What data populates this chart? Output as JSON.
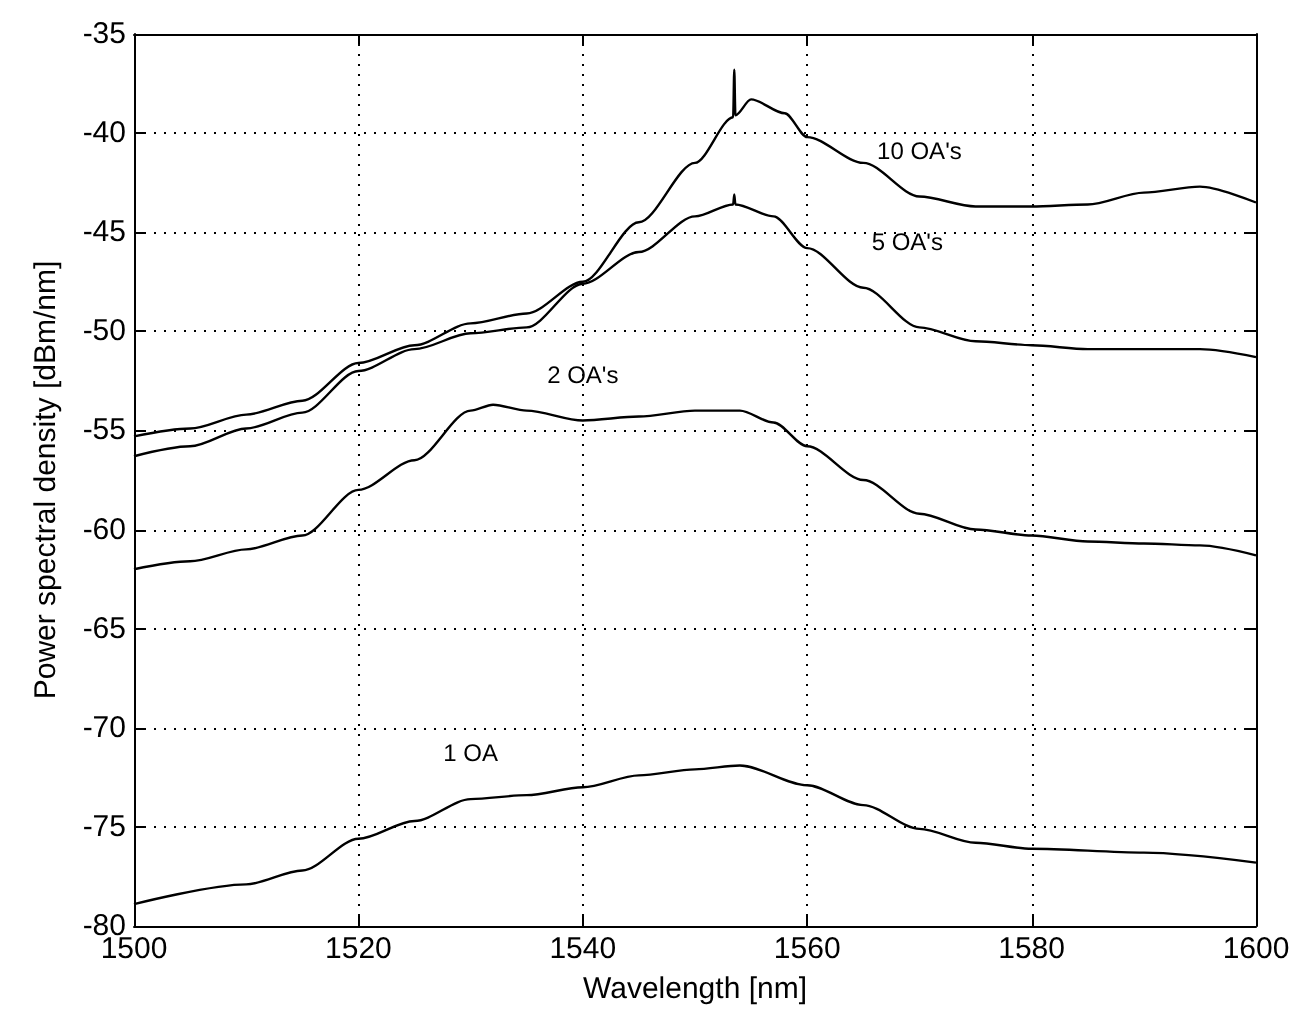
{
  "chart_data": {
    "type": "line",
    "xlabel": "Wavelength [nm]",
    "ylabel": "Power spectral density [dBm/nm]",
    "xlim": [
      1500,
      1600
    ],
    "xticks": [
      1500,
      1520,
      1540,
      1560,
      1580,
      1600
    ],
    "ylim": [
      -80,
      -35
    ],
    "yticks": [
      -80,
      -75,
      -70,
      -65,
      -60,
      -55,
      -50,
      -45,
      -40,
      -35
    ],
    "grid": true,
    "marker": "none",
    "line_style": "solid",
    "legend": false,
    "series": [
      {
        "name": "10 OA's",
        "color": "#000000",
        "x": [
          1500,
          1505,
          1510,
          1515,
          1520,
          1525,
          1530,
          1535,
          1540,
          1545,
          1550,
          1553.4,
          1553.5,
          1553.6,
          1555,
          1558,
          1560,
          1565,
          1570,
          1575,
          1580,
          1585,
          1590,
          1595,
          1600
        ],
        "values": [
          -55.3,
          -54.9,
          -54.2,
          -53.5,
          -51.6,
          -50.7,
          -49.6,
          -49.1,
          -47.5,
          -44.5,
          -41.5,
          -39.2,
          -36.8,
          -39.1,
          -38.3,
          -39,
          -40.2,
          -41.5,
          -43.2,
          -43.7,
          -43.7,
          -43.6,
          -43,
          -42.7,
          -43.5
        ]
      },
      {
        "name": "5 OA's",
        "color": "#000000",
        "x": [
          1500,
          1505,
          1510,
          1515,
          1520,
          1525,
          1530,
          1535,
          1540,
          1545,
          1550,
          1553.4,
          1553.5,
          1553.6,
          1557,
          1560,
          1565,
          1570,
          1575,
          1580,
          1585,
          1590,
          1595,
          1600
        ],
        "values": [
          -56.3,
          -55.8,
          -54.9,
          -54.1,
          -52,
          -50.9,
          -50.1,
          -49.8,
          -47.6,
          -46,
          -44.2,
          -43.6,
          -43.1,
          -43.6,
          -44.2,
          -45.8,
          -47.8,
          -49.8,
          -50.5,
          -50.7,
          -50.9,
          -50.9,
          -50.9,
          -51.3
        ]
      },
      {
        "name": "2 OA's",
        "color": "#000000",
        "x": [
          1500,
          1505,
          1510,
          1515,
          1520,
          1525,
          1530,
          1532,
          1535,
          1540,
          1545,
          1550,
          1554,
          1557,
          1560,
          1565,
          1570,
          1575,
          1580,
          1585,
          1590,
          1595,
          1600
        ],
        "values": [
          -62,
          -61.6,
          -61,
          -60.3,
          -58,
          -56.5,
          -54,
          -53.7,
          -54,
          -54.5,
          -54.3,
          -54,
          -54,
          -54.6,
          -55.8,
          -57.5,
          -59.2,
          -60,
          -60.3,
          -60.6,
          -60.7,
          -60.8,
          -61.3
        ]
      },
      {
        "name": "1 OA",
        "color": "#000000",
        "x": [
          1500,
          1510,
          1515,
          1520,
          1525,
          1530,
          1535,
          1540,
          1545,
          1550,
          1554,
          1560,
          1565,
          1570,
          1575,
          1580,
          1590,
          1600
        ],
        "values": [
          -78.9,
          -77.9,
          -77.2,
          -75.6,
          -74.7,
          -73.6,
          -73.4,
          -73,
          -72.4,
          -72.1,
          -71.9,
          -72.9,
          -73.9,
          -75.1,
          -75.8,
          -76.1,
          -76.3,
          -76.8
        ]
      }
    ]
  }
}
